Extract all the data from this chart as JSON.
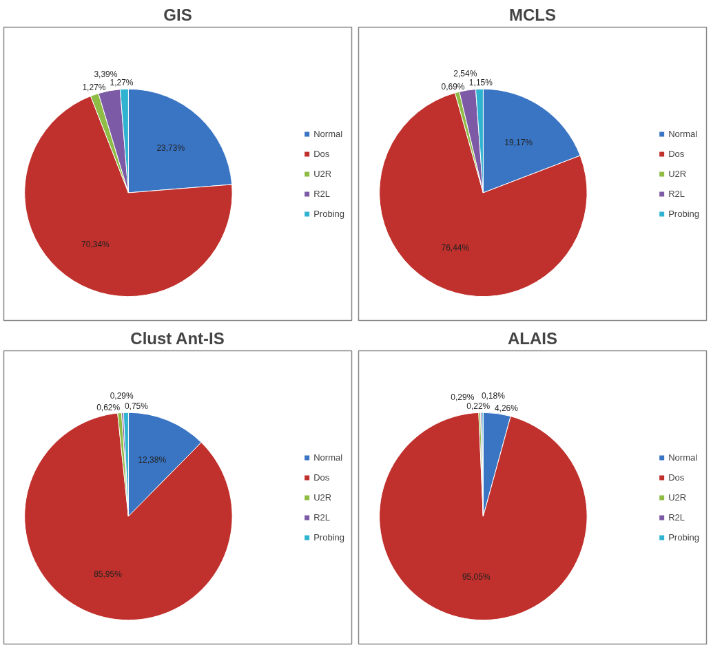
{
  "chart_data": [
    {
      "type": "pie",
      "title": "GIS",
      "categories": [
        "Normal",
        "Dos",
        "U2R",
        "R2L",
        "Probing"
      ],
      "values": [
        23.73,
        70.34,
        1.27,
        3.39,
        1.27
      ],
      "colors": [
        "#3a75c4",
        "#c0302c",
        "#8fbc45",
        "#7d5aa6",
        "#2fb3d0"
      ],
      "value_labels": [
        "23,73%",
        "70,34%",
        "1,27%",
        "3,39%",
        "1,27%"
      ],
      "legend": "right"
    },
    {
      "type": "pie",
      "title": "MCLS",
      "categories": [
        "Normal",
        "Dos",
        "U2R",
        "R2L",
        "Probing"
      ],
      "values": [
        19.17,
        76.44,
        0.69,
        2.54,
        1.15
      ],
      "colors": [
        "#3a75c4",
        "#c0302c",
        "#8fbc45",
        "#7d5aa6",
        "#2fb3d0"
      ],
      "value_labels": [
        "19,17%",
        "76,44%",
        "0,69%",
        "2,54%",
        "1,15%"
      ],
      "legend": "right"
    },
    {
      "type": "pie",
      "title": "Clust Ant-IS",
      "categories": [
        "Normal",
        "Dos",
        "U2R",
        "R2L",
        "Probing"
      ],
      "values": [
        12.38,
        85.95,
        0.62,
        0.29,
        0.75
      ],
      "colors": [
        "#3a75c4",
        "#c0302c",
        "#8fbc45",
        "#7d5aa6",
        "#2fb3d0"
      ],
      "value_labels": [
        "12,38%",
        "85,95%",
        "0,62%",
        "0,29%",
        "0,75%"
      ],
      "legend": "right"
    },
    {
      "type": "pie",
      "title": "ALAIS",
      "categories": [
        "Normal",
        "Dos",
        "U2R",
        "R2L",
        "Probing"
      ],
      "values": [
        4.26,
        95.05,
        0.29,
        0.22,
        0.18
      ],
      "colors": [
        "#3a75c4",
        "#c0302c",
        "#8fbc45",
        "#7d5aa6",
        "#2fb3d0"
      ],
      "value_labels": [
        "4,26%",
        "95,05%",
        "0,29%",
        "0,22%",
        "0,18%"
      ],
      "legend": "right"
    }
  ]
}
